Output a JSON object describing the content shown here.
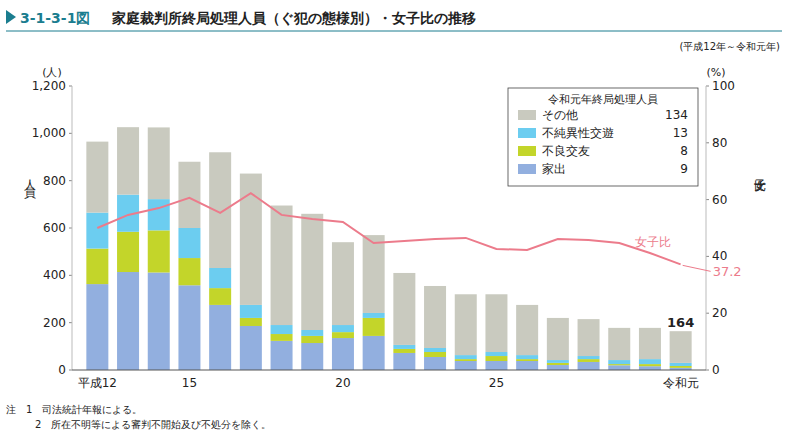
{
  "chart_data": {
    "type": "bar",
    "stacked": true,
    "figure_number": "3-1-3-1図",
    "title": "家庭裁判所終局処理人員（ぐ犯の態様別）・女子比の推移",
    "subtitle": "(平成12年～令和元年)",
    "y_unit": "(人)",
    "ylabel": "人員",
    "y2_unit": "(%)",
    "y2label": "女子比",
    "legend": "upper right",
    "legend_title": "令和元年終局処理人員",
    "categories": [
      "平成12",
      null,
      null,
      "15",
      null,
      null,
      null,
      null,
      "20",
      null,
      null,
      null,
      null,
      "25",
      null,
      null,
      null,
      null,
      null,
      "令和元"
    ],
    "ylim": [
      0,
      1200
    ],
    "yticks": [
      0,
      200,
      400,
      600,
      800,
      {
        "value": 1000,
        "label": "1,000"
      },
      {
        "value": 1200,
        "label": "1,200"
      }
    ],
    "y2lim": [
      0,
      100
    ],
    "y2ticks": [
      0,
      20,
      40,
      60,
      80,
      100
    ],
    "grid": false,
    "series": [
      {
        "name": "家出",
        "color": "#92afdf",
        "values": [
          363,
          414,
          412,
          358,
          275,
          186,
          123,
          114,
          135,
          144,
          72,
          55,
          38,
          38,
          38,
          21,
          34,
          20,
          16,
          9
        ]
      },
      {
        "name": "不良交友",
        "color": "#c3d52a",
        "values": [
          150,
          170,
          178,
          115,
          71,
          34,
          29,
          30,
          25,
          76,
          17,
          21,
          8,
          21,
          8,
          9,
          12,
          5,
          9,
          8
        ]
      },
      {
        "name": "不純異性交遊",
        "color": "#6ccdf0",
        "values": [
          152,
          157,
          132,
          127,
          85,
          55,
          38,
          25,
          30,
          21,
          17,
          17,
          17,
          17,
          17,
          12,
          13,
          17,
          21,
          13
        ]
      },
      {
        "name": "その他",
        "color": "#c9cabf",
        "values": [
          300,
          285,
          303,
          280,
          489,
          555,
          505,
          491,
          350,
          329,
          304,
          262,
          257,
          244,
          212,
          178,
          156,
          136,
          132,
          134
        ]
      },
      {
        "name": "女子比",
        "type": "line",
        "axis": "y2",
        "color": "#ec7b8b",
        "values": [
          50.0,
          54.6,
          57.0,
          60.6,
          55.3,
          62.3,
          54.6,
          53.2,
          52.1,
          44.7,
          45.4,
          46.1,
          46.5,
          42.6,
          42.3,
          46.1,
          45.8,
          44.7,
          41.2,
          37.2
        ],
        "value_labels": [
          null,
          null,
          null,
          null,
          null,
          null,
          null,
          null,
          null,
          null,
          null,
          null,
          null,
          null,
          null,
          null,
          null,
          null,
          null,
          "37.2"
        ]
      }
    ],
    "annotations": [
      {
        "category": "令和元",
        "text": "164",
        "value": 164
      }
    ],
    "notes": [
      "注　1　司法統計年報による。",
      "2　所在不明等による審判不開始及び不処分を除く。"
    ]
  }
}
